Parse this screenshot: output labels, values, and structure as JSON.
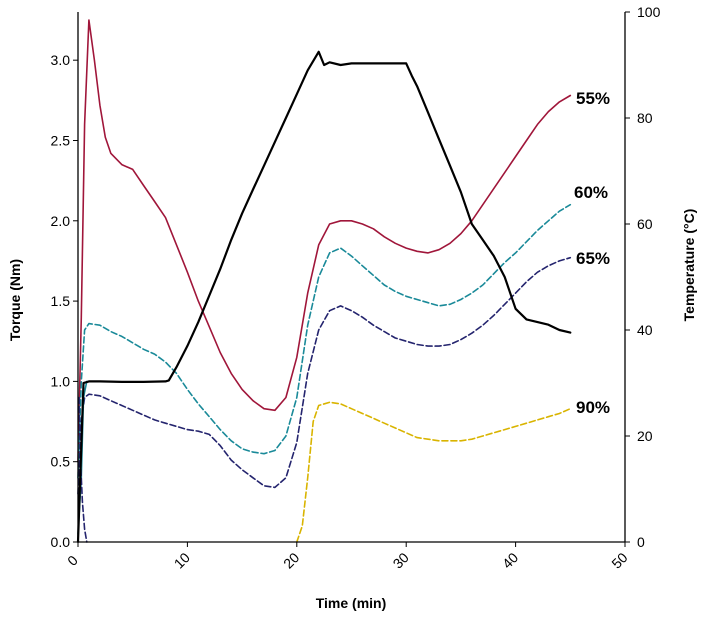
{
  "chart_data": {
    "type": "line",
    "title": "",
    "xlabel": "Time (min)",
    "ylabel": "Torque (Nm)",
    "y2label": "Temperature (°C)",
    "xlim": [
      0,
      50
    ],
    "ylim": [
      0,
      3.3
    ],
    "y2lim": [
      0,
      100
    ],
    "xticks": [
      0,
      10,
      20,
      30,
      40,
      50
    ],
    "yticks": [
      0.0,
      0.5,
      1.0,
      1.5,
      2.0,
      2.5,
      3.0
    ],
    "y2ticks": [
      0,
      20,
      40,
      60,
      80,
      100
    ],
    "xtick_labels": [
      "0",
      "10",
      "20",
      "30",
      "40",
      "50"
    ],
    "ytick_labels": [
      "0.0",
      "0.5",
      "1.0",
      "1.5",
      "2.0",
      "2.5",
      "3.0"
    ],
    "y2tick_labels": [
      "0",
      "20",
      "40",
      "60",
      "80",
      "100"
    ],
    "grid": false,
    "legend": "none",
    "series": [
      {
        "name": "55%",
        "axis": "left",
        "color": "#a0163a",
        "dash": "solid",
        "x": [
          0,
          0.3,
          0.6,
          1.0,
          1.5,
          2.0,
          2.5,
          3.0,
          4.0,
          5.0,
          6.0,
          7.0,
          8.0,
          9.0,
          10.0,
          11.0,
          12.0,
          13.0,
          14.0,
          15.0,
          16.0,
          17.0,
          18.0,
          19.0,
          20.0,
          21.0,
          22.0,
          23.0,
          24.0,
          25.0,
          26.0,
          27.0,
          28.0,
          29.0,
          30.0,
          31.0,
          32.0,
          33.0,
          34.0,
          35.0,
          36.0,
          37.0,
          38.0,
          39.0,
          40.0,
          41.0,
          42.0,
          43.0,
          44.0,
          45.0
        ],
        "y": [
          0.5,
          1.4,
          2.6,
          3.25,
          3.0,
          2.72,
          2.52,
          2.42,
          2.35,
          2.32,
          2.22,
          2.12,
          2.02,
          1.85,
          1.68,
          1.5,
          1.34,
          1.18,
          1.05,
          0.95,
          0.88,
          0.83,
          0.82,
          0.9,
          1.15,
          1.55,
          1.85,
          1.98,
          2.0,
          2.0,
          1.98,
          1.95,
          1.9,
          1.86,
          1.83,
          1.81,
          1.8,
          1.82,
          1.86,
          1.92,
          2.0,
          2.1,
          2.2,
          2.3,
          2.4,
          2.5,
          2.6,
          2.68,
          2.74,
          2.78
        ]
      },
      {
        "name": "60%",
        "axis": "left",
        "color": "#1a8a99",
        "dash": "dashed",
        "x": [
          0,
          0.3,
          0.6,
          1.0,
          2.0,
          3.0,
          4.0,
          5.0,
          6.0,
          7.0,
          8.0,
          9.0,
          10.0,
          11.0,
          12.0,
          13.0,
          14.0,
          15.0,
          16.0,
          17.0,
          18.0,
          19.0,
          20.0,
          21.0,
          22.0,
          23.0,
          24.0,
          25.0,
          26.0,
          27.0,
          28.0,
          29.0,
          30.0,
          31.0,
          32.0,
          33.0,
          34.0,
          35.0,
          36.0,
          37.0,
          38.0,
          39.0,
          40.0,
          41.0,
          42.0,
          43.0,
          44.0,
          45.0
        ],
        "y": [
          0.4,
          1.0,
          1.32,
          1.36,
          1.35,
          1.31,
          1.28,
          1.24,
          1.2,
          1.17,
          1.12,
          1.05,
          0.95,
          0.86,
          0.78,
          0.7,
          0.63,
          0.58,
          0.56,
          0.55,
          0.57,
          0.66,
          0.9,
          1.35,
          1.65,
          1.8,
          1.83,
          1.78,
          1.72,
          1.66,
          1.6,
          1.56,
          1.53,
          1.51,
          1.49,
          1.47,
          1.48,
          1.51,
          1.55,
          1.6,
          1.67,
          1.74,
          1.8,
          1.87,
          1.94,
          2.0,
          2.06,
          2.1
        ]
      },
      {
        "name": "65%",
        "axis": "left",
        "color": "#24246e",
        "dash": "dashed",
        "x": [
          0,
          0.3,
          0.6,
          1.0,
          2.0,
          3.0,
          4.0,
          5.0,
          6.0,
          7.0,
          8.0,
          9.0,
          10.0,
          11.0,
          12.0,
          13.0,
          14.0,
          15.0,
          16.0,
          17.0,
          18.0,
          19.0,
          20.0,
          21.0,
          22.0,
          23.0,
          24.0,
          25.0,
          26.0,
          27.0,
          28.0,
          29.0,
          30.0,
          31.0,
          32.0,
          33.0,
          34.0,
          35.0,
          36.0,
          37.0,
          38.0,
          39.0,
          40.0,
          41.0,
          42.0,
          43.0,
          44.0,
          45.0
        ],
        "y": [
          0.3,
          0.75,
          0.9,
          0.92,
          0.91,
          0.88,
          0.85,
          0.82,
          0.79,
          0.76,
          0.74,
          0.72,
          0.7,
          0.69,
          0.67,
          0.6,
          0.51,
          0.45,
          0.4,
          0.35,
          0.34,
          0.4,
          0.62,
          1.05,
          1.32,
          1.44,
          1.47,
          1.44,
          1.4,
          1.35,
          1.31,
          1.27,
          1.25,
          1.23,
          1.22,
          1.22,
          1.23,
          1.26,
          1.3,
          1.35,
          1.41,
          1.48,
          1.55,
          1.62,
          1.68,
          1.72,
          1.75,
          1.77
        ]
      },
      {
        "name": "90%",
        "axis": "left",
        "color": "#d9b400",
        "dash": "dashed",
        "x": [
          20.0,
          20.5,
          21.0,
          21.5,
          22.0,
          23.0,
          24.0,
          25.0,
          26.0,
          27.0,
          28.0,
          29.0,
          30.0,
          31.0,
          32.0,
          33.0,
          34.0,
          35.0,
          36.0,
          37.0,
          38.0,
          39.0,
          40.0,
          41.0,
          42.0,
          43.0,
          44.0,
          45.0
        ],
        "y": [
          0.0,
          0.1,
          0.4,
          0.75,
          0.85,
          0.87,
          0.86,
          0.83,
          0.8,
          0.77,
          0.74,
          0.71,
          0.68,
          0.65,
          0.64,
          0.63,
          0.63,
          0.63,
          0.64,
          0.66,
          0.68,
          0.7,
          0.72,
          0.74,
          0.76,
          0.78,
          0.8,
          0.83
        ]
      },
      {
        "name": "",
        "axis": "left",
        "color": "#1a8a99",
        "dash": "solid",
        "x": [
          0,
          0.3,
          0.5,
          0.8
        ],
        "y": [
          0.05,
          0.4,
          0.9,
          1.0
        ]
      },
      {
        "name": "",
        "axis": "left",
        "color": "#24246e",
        "dash": "dashed",
        "x": [
          0.1,
          0.2,
          0.4,
          0.6,
          0.8
        ],
        "y": [
          0.9,
          0.55,
          0.25,
          0.08,
          0.0
        ]
      },
      {
        "name": "",
        "axis": "right",
        "color": "#000000",
        "dash": "solid",
        "x": [
          0,
          0.5,
          1.0,
          2.0,
          4.0,
          6.0,
          8.0,
          8.3,
          9.0,
          10.0,
          11.0,
          12.0,
          13.0,
          14.0,
          15.0,
          16.0,
          17.0,
          18.0,
          19.0,
          20.0,
          21.0,
          22.0,
          22.5,
          23.0,
          24.0,
          25.0,
          26.0,
          27.0,
          28.0,
          29.0,
          30.0,
          30.5,
          31.0,
          32.0,
          33.0,
          34.0,
          35.0,
          36.0,
          37.0,
          38.0,
          39.0,
          40.0,
          41.0,
          42.0,
          43.0,
          44.0,
          45.0
        ],
        "y": [
          0,
          30,
          30.3,
          30.3,
          30.2,
          30.2,
          30.3,
          30.5,
          33,
          37,
          41.5,
          46.5,
          51.5,
          57,
          62,
          66.5,
          71,
          75.5,
          80,
          84.5,
          89,
          92.5,
          90,
          90.5,
          90,
          90.3,
          90.3,
          90.3,
          90.3,
          90.3,
          90.3,
          88,
          86,
          81,
          76,
          71,
          66,
          60,
          57,
          54,
          50,
          44,
          42,
          41.5,
          41,
          40,
          39.5
        ]
      }
    ]
  }
}
